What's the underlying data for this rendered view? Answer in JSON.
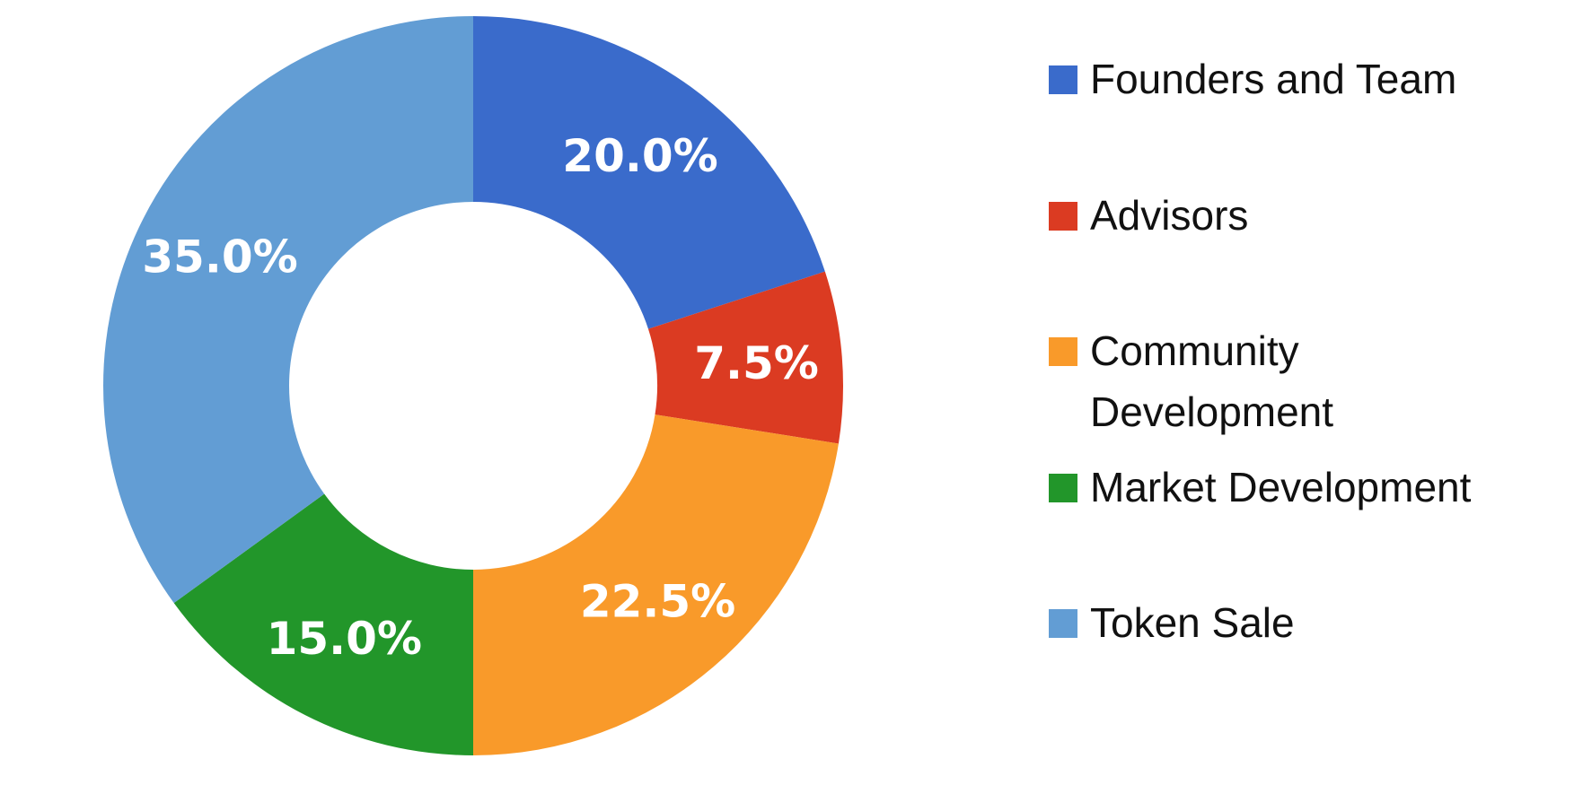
{
  "chart_data": {
    "type": "pie",
    "subtype": "donut",
    "title": "",
    "slices": [
      {
        "label": "Founders and Team",
        "value": 20.0,
        "display": "20.0%",
        "color": "#3A6BCB"
      },
      {
        "label": "Advisors",
        "value": 7.5,
        "display": "7.5%",
        "color": "#DB3B22"
      },
      {
        "label": "Community Development",
        "value": 22.5,
        "display": "22.5%",
        "color": "#F99A2A"
      },
      {
        "label": "Market Development",
        "value": 15.0,
        "display": "15.0%",
        "color": "#22962A"
      },
      {
        "label": "Token Sale",
        "value": 35.0,
        "display": "35.0%",
        "color": "#629DD4"
      }
    ],
    "start_angle": "12 o'clock",
    "direction": "clockwise",
    "legend_position": "right"
  }
}
